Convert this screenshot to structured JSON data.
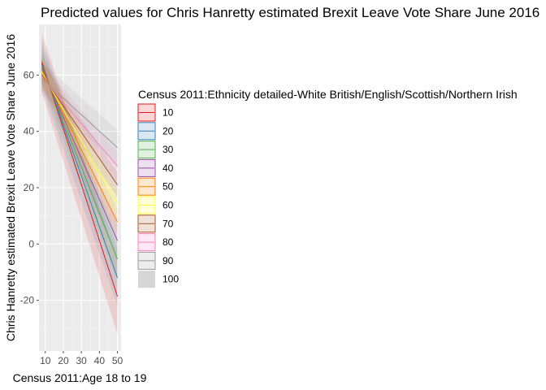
{
  "chart_data": {
    "type": "line",
    "title": "Predicted values for Chris Hanretty estimated Brexit Leave Vote Share June 2016",
    "xlabel": "Census 2011:Age 18 to 19",
    "ylabel": "Chris Hanretty estimated Brexit Leave Vote Share June 2016",
    "x": [
      8,
      50
    ],
    "xlim": [
      6.5,
      52
    ],
    "ylim": [
      -38,
      78
    ],
    "xticks": [
      "10",
      "20",
      "30",
      "40",
      "50"
    ],
    "yticks": [
      "-20",
      "0",
      "20",
      "40",
      "60"
    ],
    "grid": true,
    "legend_title": "Census 2011:Ethnicity detailed-White British/English/Scottish/Northern Irish",
    "legend_position": "right",
    "series": [
      {
        "name": "10",
        "color": "#E41A1C",
        "values": [
          64.8,
          -18.6
        ],
        "lower": [
          54.0,
          -32.0
        ],
        "upper": [
          75.0,
          -6.0
        ]
      },
      {
        "name": "20",
        "color": "#377EB8",
        "values": [
          64.0,
          -12.0
        ],
        "lower": [
          56.0,
          -22.0
        ],
        "upper": [
          72.0,
          -2.0
        ]
      },
      {
        "name": "30",
        "color": "#4DAF4A",
        "values": [
          63.3,
          -5.4
        ],
        "lower": [
          57.0,
          -13.0
        ],
        "upper": [
          70.0,
          2.0
        ]
      },
      {
        "name": "40",
        "color": "#984EA3",
        "values": [
          62.5,
          1.2
        ],
        "lower": [
          57.5,
          -5.0
        ],
        "upper": [
          68.0,
          7.0
        ]
      },
      {
        "name": "50",
        "color": "#FF7F00",
        "values": [
          61.8,
          7.8
        ],
        "lower": [
          57.5,
          3.0
        ],
        "upper": [
          66.5,
          12.5
        ]
      },
      {
        "name": "60",
        "color": "#FFFF33",
        "values": [
          61.0,
          14.4
        ],
        "lower": [
          56.5,
          10.0
        ],
        "upper": [
          65.5,
          19.0
        ]
      },
      {
        "name": "70",
        "color": "#A65628",
        "values": [
          60.3,
          21.0
        ],
        "lower": [
          55.5,
          16.5
        ],
        "upper": [
          65.0,
          25.5
        ]
      },
      {
        "name": "80",
        "color": "#F781BF",
        "values": [
          59.5,
          27.6
        ],
        "lower": [
          54.5,
          22.5
        ],
        "upper": [
          64.5,
          32.5
        ]
      },
      {
        "name": "90",
        "color": "#999999",
        "values": [
          58.8,
          34.2
        ],
        "lower": [
          53.0,
          28.0
        ],
        "upper": [
          64.5,
          40.5
        ]
      },
      {
        "name": "100",
        "color": "#d6d6d6",
        "values": [
          null,
          null
        ],
        "lower": [
          null,
          null
        ],
        "upper": [
          null,
          null
        ]
      }
    ]
  }
}
